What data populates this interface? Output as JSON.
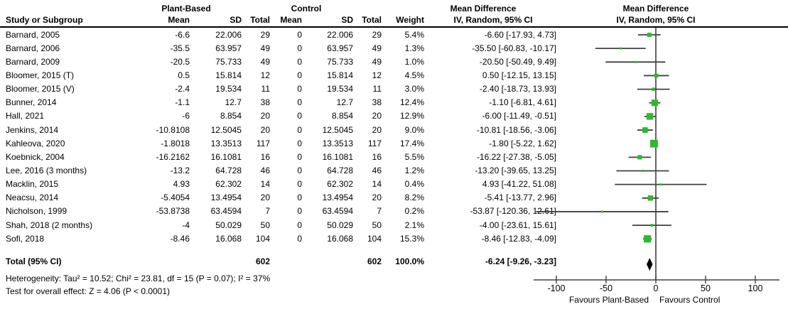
{
  "header": {
    "group_plant": "Plant-Based",
    "group_control": "Control",
    "group_md_text": "Mean Difference",
    "group_md_plot": "Mean Difference",
    "col_study": "Study or Subgroup",
    "col_mean_p": "Mean",
    "col_sd_p": "SD",
    "col_total_p": "Total",
    "col_mean_c": "Mean",
    "col_sd_c": "SD",
    "col_total_c": "Total",
    "col_weight": "Weight",
    "col_ci_text": "IV, Random, 95% CI",
    "col_ci_plot": "IV, Random, 95% CI"
  },
  "footer": {
    "heterogeneity": "Heterogeneity: Tau² = 10.52; Chi² = 23.81, df = 15 (P = 0.07); I² = 37%",
    "overall_effect": "Test for overall effect: Z = 4.06 (P < 0.0001)"
  },
  "colors": {
    "marker_green": "#2EB82E",
    "line_gray": "#404040",
    "diamond_black": "#000000"
  },
  "chart_data": {
    "type": "forest",
    "title": "Mean Difference, IV, Random, 95% CI",
    "axis": {
      "min": -100,
      "max": 100,
      "tick_values": [
        -100,
        -50,
        0,
        50,
        100
      ],
      "ticks": [
        "-100",
        "-50",
        "0",
        "50",
        "100"
      ],
      "label_left": "Favours Plant-Based",
      "label_right": "Favours Control"
    },
    "studies": [
      {
        "label": "Barnard, 2005",
        "p_mean": -6.6,
        "p_sd": 22.006,
        "p_total": 29,
        "c_mean": 0,
        "c_sd": 22.006,
        "c_total": 29,
        "weight": "5.4%",
        "w": 5.4,
        "md": "-6.60 [-17.93, 4.73]",
        "est": -6.6,
        "lo": -17.93,
        "hi": 4.73
      },
      {
        "label": "Barnard, 2006",
        "p_mean": -35.5,
        "p_sd": 63.957,
        "p_total": 49,
        "c_mean": 0,
        "c_sd": 63.957,
        "c_total": 49,
        "weight": "1.3%",
        "w": 1.3,
        "md": "-35.50 [-60.83, -10.17]",
        "est": -35.5,
        "lo": -60.83,
        "hi": -10.17
      },
      {
        "label": "Barnard, 2009",
        "p_mean": -20.5,
        "p_sd": 75.733,
        "p_total": 49,
        "c_mean": 0,
        "c_sd": 75.733,
        "c_total": 49,
        "weight": "1.0%",
        "w": 1.0,
        "md": "-20.50 [-50.49, 9.49]",
        "est": -20.5,
        "lo": -50.49,
        "hi": 9.49
      },
      {
        "label": "Bloomer, 2015 (T)",
        "p_mean": 0.5,
        "p_sd": 15.814,
        "p_total": 12,
        "c_mean": 0,
        "c_sd": 15.814,
        "c_total": 12,
        "weight": "4.5%",
        "w": 4.5,
        "md": "0.50 [-12.15, 13.15]",
        "est": 0.5,
        "lo": -12.15,
        "hi": 13.15
      },
      {
        "label": "Bloomer, 2015 (V)",
        "p_mean": -2.4,
        "p_sd": 19.534,
        "p_total": 11,
        "c_mean": 0,
        "c_sd": 19.534,
        "c_total": 11,
        "weight": "3.0%",
        "w": 3.0,
        "md": "-2.40 [-18.73, 13.93]",
        "est": -2.4,
        "lo": -18.73,
        "hi": 13.93
      },
      {
        "label": "Bunner, 2014",
        "p_mean": -1.1,
        "p_sd": 12.7,
        "p_total": 38,
        "c_mean": 0,
        "c_sd": 12.7,
        "c_total": 38,
        "weight": "12.4%",
        "w": 12.4,
        "md": "-1.10 [-6.81, 4.61]",
        "est": -1.1,
        "lo": -6.81,
        "hi": 4.61
      },
      {
        "label": "Hall, 2021",
        "p_mean": -6,
        "p_sd": 8.854,
        "p_total": 20,
        "c_mean": 0,
        "c_sd": 8.854,
        "c_total": 20,
        "weight": "12.9%",
        "w": 12.9,
        "md": "-6.00 [-11.49, -0.51]",
        "est": -6.0,
        "lo": -11.49,
        "hi": -0.51
      },
      {
        "label": "Jenkins, 2014",
        "p_mean": -10.8108,
        "p_sd": 12.5045,
        "p_total": 20,
        "c_mean": 0,
        "c_sd": 12.5045,
        "c_total": 20,
        "weight": "9.0%",
        "w": 9.0,
        "md": "-10.81 [-18.56, -3.06]",
        "est": -10.81,
        "lo": -18.56,
        "hi": -3.06
      },
      {
        "label": "Kahleova, 2020",
        "p_mean": -1.8018,
        "p_sd": 13.3513,
        "p_total": 117,
        "c_mean": 0,
        "c_sd": 13.3513,
        "c_total": 117,
        "weight": "17.4%",
        "w": 17.4,
        "md": "-1.80 [-5.22, 1.62]",
        "est": -1.8,
        "lo": -5.22,
        "hi": 1.62
      },
      {
        "label": "Koebnick, 2004",
        "p_mean": -16.2162,
        "p_sd": 16.1081,
        "p_total": 16,
        "c_mean": 0,
        "c_sd": 16.1081,
        "c_total": 16,
        "weight": "5.5%",
        "w": 5.5,
        "md": "-16.22 [-27.38, -5.05]",
        "est": -16.22,
        "lo": -27.38,
        "hi": -5.05
      },
      {
        "label": "Lee, 2016 (3 months)",
        "p_mean": -13.2,
        "p_sd": 64.728,
        "p_total": 46,
        "c_mean": 0,
        "c_sd": 64.728,
        "c_total": 46,
        "weight": "1.2%",
        "w": 1.2,
        "md": "-13.20 [-39.65, 13.25]",
        "est": -13.2,
        "lo": -39.65,
        "hi": 13.25
      },
      {
        "label": "Macklin, 2015",
        "p_mean": 4.93,
        "p_sd": 62.302,
        "p_total": 14,
        "c_mean": 0,
        "c_sd": 62.302,
        "c_total": 14,
        "weight": "0.4%",
        "w": 0.4,
        "md": "4.93 [-41.22, 51.08]",
        "est": 4.93,
        "lo": -41.22,
        "hi": 51.08
      },
      {
        "label": "Neacsu, 2014",
        "p_mean": -5.4054,
        "p_sd": 13.4954,
        "p_total": 20,
        "c_mean": 0,
        "c_sd": 13.4954,
        "c_total": 20,
        "weight": "8.2%",
        "w": 8.2,
        "md": "-5.41 [-13.77, 2.96]",
        "est": -5.41,
        "lo": -13.77,
        "hi": 2.96
      },
      {
        "label": "Nicholson, 1999",
        "p_mean": -53.8738,
        "p_sd": 63.4594,
        "p_total": 7,
        "c_mean": 0,
        "c_sd": 63.4594,
        "c_total": 7,
        "weight": "0.2%",
        "w": 0.2,
        "md": "-53.87 [-120.36, 12.61]",
        "est": -53.87,
        "lo": -120.36,
        "hi": 12.61
      },
      {
        "label": "Shah, 2018 (2 months)",
        "p_mean": -4,
        "p_sd": 50.029,
        "p_total": 50,
        "c_mean": 0,
        "c_sd": 50.029,
        "c_total": 50,
        "weight": "2.1%",
        "w": 2.1,
        "md": "-4.00 [-23.61, 15.61]",
        "est": -4.0,
        "lo": -23.61,
        "hi": 15.61
      },
      {
        "label": "Sofi, 2018",
        "p_mean": -8.46,
        "p_sd": 16.068,
        "p_total": 104,
        "c_mean": 0,
        "c_sd": 16.068,
        "c_total": 104,
        "weight": "15.3%",
        "w": 15.3,
        "md": "-8.46 [-12.83, -4.09]",
        "est": -8.46,
        "lo": -12.83,
        "hi": -4.09
      }
    ],
    "total": {
      "label": "Total (95% CI)",
      "p_total": 602,
      "c_total": 602,
      "weight": "100.0%",
      "md": "-6.24 [-9.26, -3.23]",
      "est": -6.24,
      "lo": -9.26,
      "hi": -3.23
    }
  }
}
